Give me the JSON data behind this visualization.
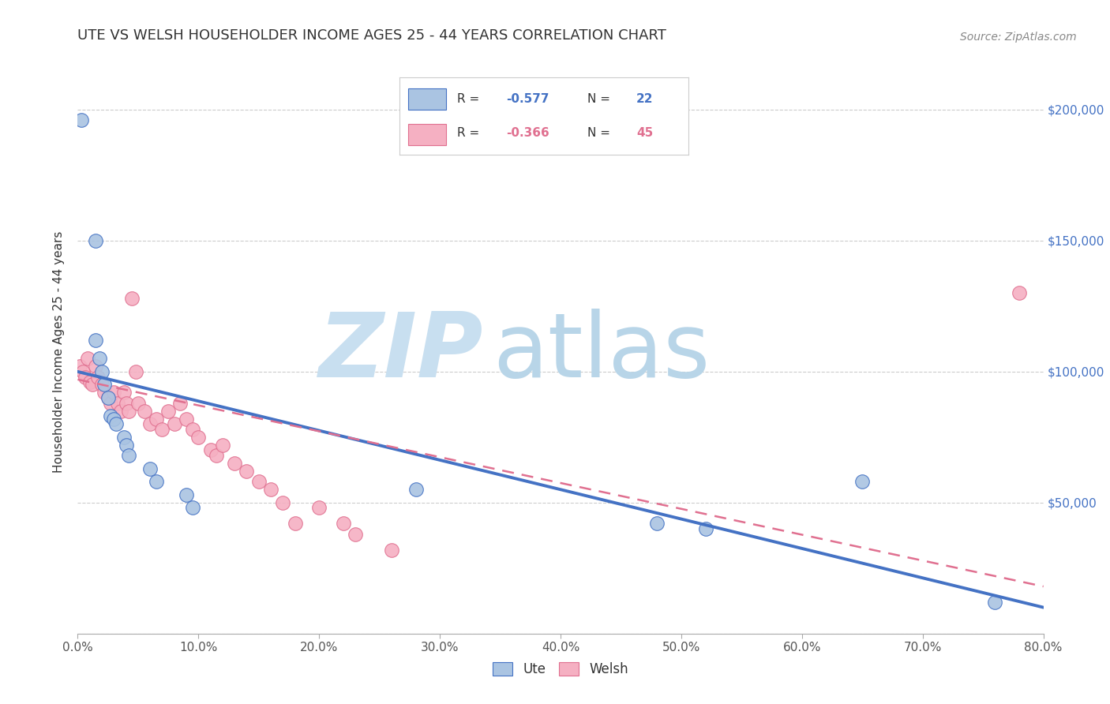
{
  "title": "UTE VS WELSH HOUSEHOLDER INCOME AGES 25 - 44 YEARS CORRELATION CHART",
  "source": "Source: ZipAtlas.com",
  "ylabel": "Householder Income Ages 25 - 44 years",
  "xlim": [
    0.0,
    0.8
  ],
  "ylim": [
    0,
    215000
  ],
  "ute_R": "-0.577",
  "ute_N": "22",
  "welsh_R": "-0.366",
  "welsh_N": "45",
  "ute_color": "#aac4e2",
  "ute_line_color": "#4472c4",
  "welsh_color": "#f5b0c2",
  "welsh_line_color": "#e07090",
  "ute_scatter_x": [
    0.003,
    0.015,
    0.015,
    0.018,
    0.02,
    0.022,
    0.025,
    0.027,
    0.03,
    0.032,
    0.038,
    0.04,
    0.042,
    0.06,
    0.065,
    0.09,
    0.095,
    0.28,
    0.48,
    0.52,
    0.65,
    0.76
  ],
  "ute_scatter_y": [
    196000,
    150000,
    112000,
    105000,
    100000,
    95000,
    90000,
    83000,
    82000,
    80000,
    75000,
    72000,
    68000,
    63000,
    58000,
    53000,
    48000,
    55000,
    42000,
    40000,
    58000,
    12000
  ],
  "welsh_scatter_x": [
    0.002,
    0.004,
    0.006,
    0.008,
    0.01,
    0.012,
    0.015,
    0.017,
    0.02,
    0.022,
    0.025,
    0.027,
    0.03,
    0.033,
    0.036,
    0.038,
    0.04,
    0.042,
    0.045,
    0.048,
    0.05,
    0.055,
    0.06,
    0.065,
    0.07,
    0.075,
    0.08,
    0.085,
    0.09,
    0.095,
    0.1,
    0.11,
    0.115,
    0.12,
    0.13,
    0.14,
    0.15,
    0.16,
    0.17,
    0.18,
    0.2,
    0.22,
    0.23,
    0.26,
    0.78
  ],
  "welsh_scatter_y": [
    102000,
    100000,
    98000,
    105000,
    96000,
    95000,
    102000,
    98000,
    95000,
    92000,
    90000,
    88000,
    92000,
    88000,
    85000,
    92000,
    88000,
    85000,
    128000,
    100000,
    88000,
    85000,
    80000,
    82000,
    78000,
    85000,
    80000,
    88000,
    82000,
    78000,
    75000,
    70000,
    68000,
    72000,
    65000,
    62000,
    58000,
    55000,
    50000,
    42000,
    48000,
    42000,
    38000,
    32000,
    130000
  ],
  "line_ute_x0": 0.0,
  "line_ute_y0": 100000,
  "line_ute_x1": 0.8,
  "line_ute_y1": 10000,
  "line_welsh_x0": 0.0,
  "line_welsh_y0": 97000,
  "line_welsh_x1": 0.8,
  "line_welsh_y1": 18000,
  "background_color": "#ffffff",
  "grid_color": "#cccccc",
  "watermark_zip": "ZIP",
  "watermark_atlas": "atlas",
  "watermark_color_zip": "#c8dff0",
  "watermark_color_atlas": "#b8d5e8",
  "right_ytick_values": [
    50000,
    100000,
    150000,
    200000
  ],
  "xlabel_ticks": [
    "0.0%",
    "10.0%",
    "20.0%",
    "30.0%",
    "40.0%",
    "50.0%",
    "60.0%",
    "70.0%",
    "80.0%"
  ],
  "x_tick_vals": [
    0.0,
    0.1,
    0.2,
    0.3,
    0.4,
    0.5,
    0.6,
    0.7,
    0.8
  ]
}
